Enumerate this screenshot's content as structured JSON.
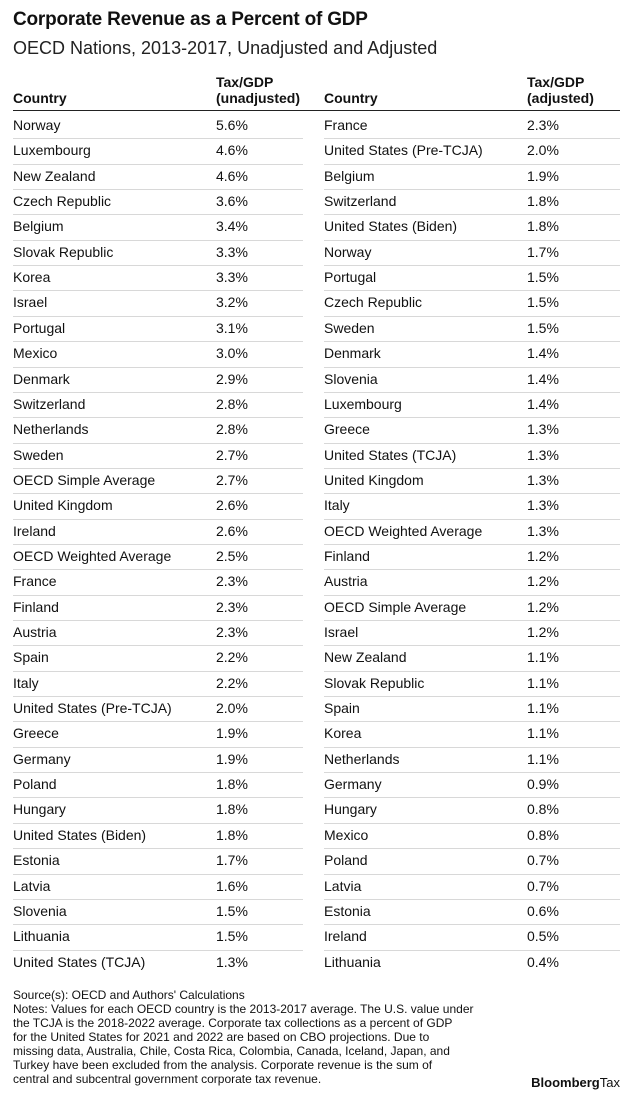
{
  "title": "Corporate Revenue as a Percent of GDP",
  "subtitle": "OECD Nations, 2013-2017, Unadjusted and Adjusted",
  "headers": {
    "country_left": "Country",
    "unadjusted_line1": "Tax/GDP",
    "unadjusted_line2": "(unadjusted)",
    "country_right": "Country",
    "adjusted_line1": "Tax/GDP",
    "adjusted_line2": "(adjusted)"
  },
  "chart_data": {
    "type": "table",
    "title": "Corporate Revenue as a Percent of GDP",
    "subtitle": "OECD Nations, 2013-2017, Unadjusted and Adjusted",
    "columns": [
      "Country",
      "Tax/GDP (unadjusted)",
      "Country",
      "Tax/GDP (adjusted)"
    ],
    "unadjusted": [
      {
        "country": "Norway",
        "value": "5.6%"
      },
      {
        "country": "Luxembourg",
        "value": "4.6%"
      },
      {
        "country": "New Zealand",
        "value": "4.6%"
      },
      {
        "country": "Czech Republic",
        "value": "3.6%"
      },
      {
        "country": "Belgium",
        "value": "3.4%"
      },
      {
        "country": "Slovak Republic",
        "value": "3.3%"
      },
      {
        "country": "Korea",
        "value": "3.3%"
      },
      {
        "country": "Israel",
        "value": "3.2%"
      },
      {
        "country": "Portugal",
        "value": "3.1%"
      },
      {
        "country": "Mexico",
        "value": "3.0%"
      },
      {
        "country": "Denmark",
        "value": "2.9%"
      },
      {
        "country": "Switzerland",
        "value": "2.8%"
      },
      {
        "country": "Netherlands",
        "value": "2.8%"
      },
      {
        "country": "Sweden",
        "value": "2.7%"
      },
      {
        "country": "OECD Simple Average",
        "value": "2.7%"
      },
      {
        "country": "United Kingdom",
        "value": "2.6%"
      },
      {
        "country": "Ireland",
        "value": "2.6%"
      },
      {
        "country": "OECD Weighted Average",
        "value": "2.5%"
      },
      {
        "country": "France",
        "value": "2.3%"
      },
      {
        "country": "Finland",
        "value": "2.3%"
      },
      {
        "country": "Austria",
        "value": "2.3%"
      },
      {
        "country": "Spain",
        "value": "2.2%"
      },
      {
        "country": "Italy",
        "value": "2.2%"
      },
      {
        "country": "United States (Pre-TCJA)",
        "value": "2.0%"
      },
      {
        "country": "Greece",
        "value": "1.9%"
      },
      {
        "country": "Germany",
        "value": "1.9%"
      },
      {
        "country": "Poland",
        "value": "1.8%"
      },
      {
        "country": "Hungary",
        "value": "1.8%"
      },
      {
        "country": "United States (Biden)",
        "value": "1.8%"
      },
      {
        "country": "Estonia",
        "value": "1.7%"
      },
      {
        "country": "Latvia",
        "value": "1.6%"
      },
      {
        "country": "Slovenia",
        "value": "1.5%"
      },
      {
        "country": "Lithuania",
        "value": "1.5%"
      },
      {
        "country": "United States (TCJA)",
        "value": "1.3%"
      }
    ],
    "adjusted": [
      {
        "country": "France",
        "value": "2.3%"
      },
      {
        "country": "United States (Pre-TCJA)",
        "value": "2.0%"
      },
      {
        "country": "Belgium",
        "value": "1.9%"
      },
      {
        "country": "Switzerland",
        "value": "1.8%"
      },
      {
        "country": "United States (Biden)",
        "value": "1.8%"
      },
      {
        "country": "Norway",
        "value": "1.7%"
      },
      {
        "country": "Portugal",
        "value": "1.5%"
      },
      {
        "country": "Czech Republic",
        "value": "1.5%"
      },
      {
        "country": "Sweden",
        "value": "1.5%"
      },
      {
        "country": "Denmark",
        "value": "1.4%"
      },
      {
        "country": "Slovenia",
        "value": "1.4%"
      },
      {
        "country": "Luxembourg",
        "value": "1.4%"
      },
      {
        "country": "Greece",
        "value": "1.3%"
      },
      {
        "country": "United States (TCJA)",
        "value": "1.3%"
      },
      {
        "country": "United Kingdom",
        "value": "1.3%"
      },
      {
        "country": "Italy",
        "value": "1.3%"
      },
      {
        "country": "OECD Weighted Average",
        "value": "1.3%"
      },
      {
        "country": "Finland",
        "value": "1.2%"
      },
      {
        "country": "Austria",
        "value": "1.2%"
      },
      {
        "country": "OECD Simple Average",
        "value": "1.2%"
      },
      {
        "country": "Israel",
        "value": "1.2%"
      },
      {
        "country": "New Zealand",
        "value": "1.1%"
      },
      {
        "country": "Slovak Republic",
        "value": "1.1%"
      },
      {
        "country": "Spain",
        "value": "1.1%"
      },
      {
        "country": "Korea",
        "value": "1.1%"
      },
      {
        "country": "Netherlands",
        "value": "1.1%"
      },
      {
        "country": "Germany",
        "value": "0.9%"
      },
      {
        "country": "Hungary",
        "value": "0.8%"
      },
      {
        "country": "Mexico",
        "value": "0.8%"
      },
      {
        "country": "Poland",
        "value": "0.7%"
      },
      {
        "country": "Latvia",
        "value": "0.7%"
      },
      {
        "country": "Estonia",
        "value": "0.6%"
      },
      {
        "country": "Ireland",
        "value": "0.5%"
      },
      {
        "country": "Lithuania",
        "value": "0.4%"
      }
    ]
  },
  "notes": {
    "source": "Source(s): OECD and Authors' Calculations",
    "lines": [
      "Notes: Values for each OECD country is the 2013-2017 average. The U.S. value under",
      "the TCJA is the 2018-2022 average. Corporate tax collections as a percent of GDP",
      "for the United States for 2021 and 2022 are based on CBO projections. Due to",
      "missing data, Australia, Chile, Costa Rica, Colombia, Canada, Iceland, Japan, and",
      "Turkey have been excluded from the analysis. Corporate revenue is the sum of",
      "central and subcentral government corporate tax revenue."
    ]
  },
  "brand": {
    "bold": "Bloomberg",
    "light": "Tax"
  }
}
